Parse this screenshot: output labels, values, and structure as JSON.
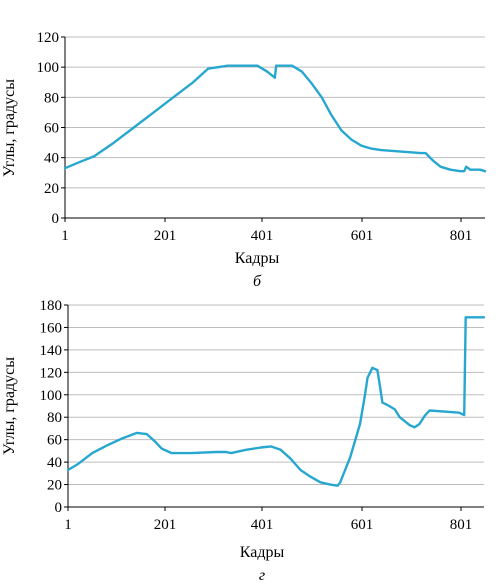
{
  "chart_data": [
    {
      "type": "line",
      "caption": "б",
      "xlabel": "Кадры",
      "ylabel": "Углы, градусы",
      "ylim": [
        0,
        120
      ],
      "xlim": [
        1,
        850
      ],
      "y_ticks": [
        "0",
        "20",
        "40",
        "60",
        "80",
        "100",
        "120"
      ],
      "x_ticks": [
        "1",
        "201",
        "401",
        "601",
        "801"
      ],
      "grid": true,
      "series": [
        {
          "color": "#27a7cf",
          "x": [
            1,
            30,
            60,
            100,
            140,
            180,
            220,
            260,
            290,
            310,
            330,
            360,
            390,
            410,
            425,
            428,
            440,
            460,
            480,
            500,
            520,
            540,
            560,
            580,
            590,
            600,
            620,
            640,
            680,
            720,
            730,
            745,
            760,
            780,
            800,
            808,
            812,
            820,
            840,
            850
          ],
          "values": [
            33,
            37,
            41,
            50,
            60,
            70,
            80,
            90,
            99,
            100,
            101,
            101,
            101,
            97,
            93,
            101,
            101,
            101,
            97,
            89,
            80,
            68,
            58,
            52,
            50,
            48,
            46,
            45,
            44,
            43,
            43,
            38,
            34,
            32,
            31,
            31,
            34,
            32,
            32,
            31
          ]
        }
      ]
    },
    {
      "type": "line",
      "caption": "г",
      "xlabel": "Кадры",
      "ylabel": "Углы, градусы",
      "ylim": [
        0,
        180
      ],
      "xlim": [
        1,
        840
      ],
      "y_ticks": [
        "0",
        "20",
        "40",
        "60",
        "80",
        "100",
        "120",
        "140",
        "160",
        "180"
      ],
      "x_ticks": [
        "1",
        "201",
        "401",
        "601",
        "801"
      ],
      "grid": true,
      "series": [
        {
          "color": "#27a7cf",
          "x": [
            1,
            20,
            50,
            80,
            110,
            140,
            160,
            175,
            190,
            210,
            250,
            300,
            320,
            330,
            360,
            390,
            410,
            430,
            450,
            470,
            490,
            510,
            530,
            545,
            550,
            570,
            590,
            600,
            605,
            615,
            625,
            630,
            635,
            645,
            660,
            670,
            690,
            700,
            710,
            720,
            730,
            760,
            790,
            795,
            800,
            803,
            820,
            840
          ],
          "values": [
            33,
            38,
            48,
            55,
            61,
            66,
            65,
            59,
            52,
            48,
            48,
            49,
            49,
            48,
            51,
            53,
            54,
            51,
            43,
            33,
            27,
            22,
            20,
            19,
            22,
            44,
            74,
            100,
            115,
            124,
            122,
            108,
            93,
            91,
            87,
            80,
            73,
            71,
            74,
            81,
            86,
            85,
            84,
            83,
            82,
            169,
            169,
            169
          ]
        }
      ]
    }
  ]
}
